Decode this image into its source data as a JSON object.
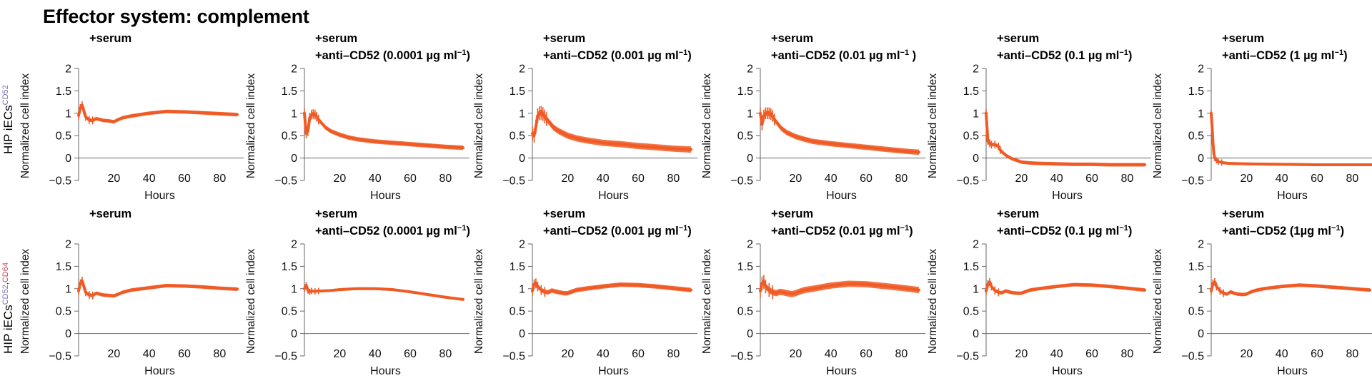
{
  "figure_title": "Effector system: complement",
  "row_labels": [
    {
      "text": "HIP iECs",
      "superscript": "CD52",
      "superscript_parts": [
        "CD52"
      ],
      "colors": [
        "#7b73b8"
      ]
    },
    {
      "text": "HIP iECs",
      "superscript": "CD52,CD64",
      "superscript_parts": [
        "CD52",
        "CD64"
      ],
      "colors": [
        "#7b73b8",
        "#d6435a"
      ]
    }
  ],
  "colors": {
    "series": "#f05a24",
    "axis": "#666666"
  },
  "chart_data": [
    {
      "type": "line",
      "row": 0,
      "col": 0,
      "title_line1": "+serum",
      "title_line2": "",
      "title_line2_suffix": "",
      "xlabel": "Hours",
      "ylabel": "Normalized cell index",
      "xlim": [
        0,
        92
      ],
      "ylim": [
        -0.5,
        2
      ],
      "xticks": [
        20,
        40,
        60,
        80
      ],
      "yticks": [
        "2",
        "1.5",
        "1",
        "0.5",
        "0",
        "−0.5"
      ],
      "series": [
        {
          "name": "Normalized cell index",
          "x": [
            0,
            1,
            2,
            3,
            4,
            6,
            8,
            10,
            12,
            14,
            17,
            20,
            22,
            25,
            30,
            40,
            50,
            60,
            70,
            80,
            90
          ],
          "y": [
            0.95,
            1.12,
            1.18,
            1.05,
            0.92,
            0.85,
            0.84,
            0.88,
            0.86,
            0.84,
            0.83,
            0.81,
            0.85,
            0.9,
            0.94,
            1.0,
            1.04,
            1.03,
            1.01,
            0.99,
            0.97
          ],
          "error": 0.04
        }
      ]
    },
    {
      "type": "line",
      "row": 0,
      "col": 1,
      "title_line1": "+serum",
      "title_line2": "+anti–CD52 (0.0001 µg ml",
      "title_line2_suffix": ")",
      "xlabel": "Hours",
      "ylabel": "Normalized cell index",
      "xlim": [
        0,
        92
      ],
      "ylim": [
        -0.5,
        2
      ],
      "xticks": [
        20,
        40,
        60,
        80
      ],
      "yticks": [
        "2",
        "1.5",
        "1",
        "0.5",
        "0",
        "−0.5"
      ],
      "series": [
        {
          "name": "Normalized cell index",
          "x": [
            0,
            1,
            2,
            3,
            4,
            5,
            6,
            7,
            8,
            10,
            12,
            15,
            20,
            25,
            30,
            40,
            50,
            60,
            70,
            80,
            90
          ],
          "y": [
            1.0,
            0.55,
            0.6,
            0.9,
            0.97,
            0.98,
            0.97,
            0.92,
            0.86,
            0.77,
            0.68,
            0.6,
            0.52,
            0.46,
            0.42,
            0.37,
            0.34,
            0.31,
            0.28,
            0.25,
            0.23
          ],
          "error": 0.05
        }
      ]
    },
    {
      "type": "line",
      "row": 0,
      "col": 2,
      "title_line1": "+serum",
      "title_line2": "+anti–CD52 (0.001 µg ml",
      "title_line2_suffix": ")",
      "xlabel": "Hours",
      "ylabel": "Normalized cell index",
      "xlim": [
        0,
        92
      ],
      "ylim": [
        -0.5,
        2
      ],
      "xticks": [
        20,
        40,
        60,
        80
      ],
      "yticks": [
        "2",
        "1.5",
        "1",
        "0.5",
        "0",
        "−0.5"
      ],
      "series": [
        {
          "name": "Normalized cell index",
          "x": [
            0,
            1,
            2,
            3,
            4,
            5,
            6,
            7,
            8,
            10,
            12,
            15,
            20,
            25,
            30,
            40,
            50,
            60,
            70,
            80,
            90
          ],
          "y": [
            0.55,
            0.5,
            0.7,
            0.95,
            1.0,
            1.01,
            0.98,
            0.93,
            0.87,
            0.78,
            0.68,
            0.6,
            0.5,
            0.44,
            0.4,
            0.34,
            0.31,
            0.27,
            0.24,
            0.21,
            0.19
          ],
          "error": 0.07
        }
      ]
    },
    {
      "type": "line",
      "row": 0,
      "col": 3,
      "title_line1": "+serum",
      "title_line2": "+anti–CD52 (0.01 µg ml",
      "title_line2_suffix": " )",
      "xlabel": "Hours",
      "ylabel": "Normalized cell index",
      "xlim": [
        0,
        92
      ],
      "ylim": [
        -0.5,
        2
      ],
      "xticks": [
        20,
        40,
        60,
        80
      ],
      "yticks": [
        "2",
        "1.5",
        "1",
        "0.5",
        "0",
        "−0.5"
      ],
      "series": [
        {
          "name": "Normalized cell index",
          "x": [
            0,
            1,
            2,
            3,
            4,
            5,
            6,
            7,
            8,
            10,
            12,
            15,
            20,
            25,
            30,
            40,
            50,
            60,
            70,
            80,
            90
          ],
          "y": [
            1.0,
            0.75,
            0.95,
            1.0,
            1.0,
            1.0,
            0.98,
            0.94,
            0.86,
            0.76,
            0.66,
            0.57,
            0.48,
            0.42,
            0.37,
            0.32,
            0.28,
            0.24,
            0.2,
            0.16,
            0.13
          ],
          "error": 0.06
        }
      ]
    },
    {
      "type": "line",
      "row": 0,
      "col": 4,
      "title_line1": "+serum",
      "title_line2": "+anti–CD52 (0.1 µg ml",
      "title_line2_suffix": ")",
      "xlabel": "Hours",
      "ylabel": "Normalized cell index",
      "xlim": [
        0,
        92
      ],
      "ylim": [
        -0.5,
        2
      ],
      "xticks": [
        20,
        40,
        60,
        80
      ],
      "yticks": [
        "2",
        "1.5",
        "1",
        "0.5",
        "0",
        "−0.5"
      ],
      "series": [
        {
          "name": "Normalized cell index",
          "x": [
            0,
            1,
            2,
            3,
            5,
            7,
            8,
            10,
            12,
            15,
            18,
            20,
            25,
            30,
            40,
            50,
            60,
            70,
            80,
            90
          ],
          "y": [
            1.0,
            0.38,
            0.33,
            0.3,
            0.3,
            0.26,
            0.18,
            0.1,
            0.04,
            -0.02,
            -0.06,
            -0.09,
            -0.11,
            -0.12,
            -0.13,
            -0.14,
            -0.14,
            -0.15,
            -0.15,
            -0.15
          ],
          "error": 0.04
        }
      ]
    },
    {
      "type": "line",
      "row": 0,
      "col": 5,
      "title_line1": "+serum",
      "title_line2": "+anti–CD52 (1 µg ml",
      "title_line2_suffix": ")",
      "xlabel": "Hours",
      "ylabel": "Normalized cell index",
      "xlim": [
        0,
        92
      ],
      "ylim": [
        -0.5,
        2
      ],
      "xticks": [
        20,
        40,
        60,
        80
      ],
      "yticks": [
        "2",
        "1.5",
        "1",
        "0.5",
        "0",
        "−0.5"
      ],
      "series": [
        {
          "name": "Normalized cell index",
          "x": [
            0,
            0.5,
            1,
            1.5,
            2,
            3,
            4,
            6,
            10,
            20,
            40,
            60,
            80,
            92
          ],
          "y": [
            1.0,
            0.7,
            0.35,
            0.1,
            0.0,
            -0.05,
            -0.08,
            -0.1,
            -0.12,
            -0.13,
            -0.14,
            -0.15,
            -0.15,
            -0.15
          ],
          "error": 0.03
        }
      ]
    },
    {
      "type": "line",
      "row": 1,
      "col": 0,
      "title_line1": "+serum",
      "title_line2": "",
      "title_line2_suffix": "",
      "xlabel": "Hours",
      "ylabel": "Normalized cell index",
      "xlim": [
        0,
        92
      ],
      "ylim": [
        -0.5,
        2
      ],
      "xticks": [
        20,
        40,
        60,
        80
      ],
      "yticks": [
        "2",
        "1.5",
        "1",
        "0.5",
        "0",
        "−0.5"
      ],
      "series": [
        {
          "name": "Normalized cell index",
          "x": [
            0,
            1,
            2,
            3,
            4,
            6,
            8,
            10,
            12,
            14,
            17,
            20,
            22,
            25,
            30,
            40,
            50,
            60,
            70,
            80,
            90
          ],
          "y": [
            0.95,
            1.12,
            1.18,
            1.05,
            0.92,
            0.86,
            0.85,
            0.9,
            0.88,
            0.86,
            0.85,
            0.84,
            0.87,
            0.92,
            0.97,
            1.02,
            1.07,
            1.06,
            1.04,
            1.01,
            0.99
          ],
          "error": 0.04
        }
      ]
    },
    {
      "type": "line",
      "row": 1,
      "col": 1,
      "title_line1": "+serum",
      "title_line2": "+anti–CD52 (0.0001 µg ml",
      "title_line2_suffix": ")",
      "xlabel": "Hours",
      "ylabel": "Normalized cell index",
      "xlim": [
        0,
        92
      ],
      "ylim": [
        -0.5,
        2
      ],
      "xticks": [
        20,
        40,
        60,
        80
      ],
      "yticks": [
        "2",
        "1.5",
        "1",
        "0.5",
        "0",
        "−0.5"
      ],
      "series": [
        {
          "name": "Normalized cell index",
          "x": [
            0,
            1,
            2,
            3,
            4,
            6,
            8,
            10,
            15,
            20,
            30,
            40,
            50,
            60,
            70,
            80,
            90
          ],
          "y": [
            1.0,
            1.08,
            0.96,
            0.93,
            0.95,
            0.94,
            0.95,
            0.95,
            0.96,
            0.98,
            1.0,
            1.0,
            0.98,
            0.93,
            0.87,
            0.81,
            0.76
          ],
          "error": 0.03
        }
      ]
    },
    {
      "type": "line",
      "row": 1,
      "col": 2,
      "title_line1": "+serum",
      "title_line2": "+anti–CD52 (0.001 µg ml",
      "title_line2_suffix": ")",
      "xlabel": "Hours",
      "ylabel": "Normalized cell index",
      "xlim": [
        0,
        92
      ],
      "ylim": [
        -0.5,
        2
      ],
      "xticks": [
        20,
        40,
        60,
        80
      ],
      "yticks": [
        "2",
        "1.5",
        "1",
        "0.5",
        "0",
        "−0.5"
      ],
      "series": [
        {
          "name": "Normalized cell index",
          "x": [
            0,
            1,
            2,
            3,
            5,
            7,
            9,
            11,
            13,
            15,
            18,
            20,
            22,
            25,
            30,
            40,
            50,
            60,
            70,
            80,
            90
          ],
          "y": [
            0.95,
            1.1,
            1.12,
            1.05,
            0.97,
            0.93,
            0.92,
            0.96,
            0.94,
            0.92,
            0.9,
            0.9,
            0.93,
            0.97,
            1.0,
            1.05,
            1.09,
            1.08,
            1.05,
            1.01,
            0.97
          ],
          "error": 0.05
        }
      ]
    },
    {
      "type": "line",
      "row": 1,
      "col": 3,
      "title_line1": "+serum",
      "title_line2": "+anti–CD52 (0.01 µg ml",
      "title_line2_suffix": ")",
      "xlabel": "Hours",
      "ylabel": "Normalized cell index",
      "xlim": [
        0,
        92
      ],
      "ylim": [
        -0.5,
        2
      ],
      "xticks": [
        20,
        40,
        60,
        80
      ],
      "yticks": [
        "2",
        "1.5",
        "1",
        "0.5",
        "0",
        "−0.5"
      ],
      "series": [
        {
          "name": "Normalized cell index",
          "x": [
            0,
            1,
            2,
            3,
            5,
            7,
            9,
            11,
            13,
            15,
            18,
            20,
            22,
            25,
            30,
            40,
            50,
            60,
            70,
            80,
            90
          ],
          "y": [
            0.95,
            1.12,
            1.15,
            1.05,
            0.97,
            0.92,
            0.9,
            0.93,
            0.92,
            0.9,
            0.88,
            0.9,
            0.93,
            0.97,
            1.0,
            1.07,
            1.11,
            1.1,
            1.06,
            1.02,
            0.97
          ],
          "error": 0.07
        }
      ]
    },
    {
      "type": "line",
      "row": 1,
      "col": 4,
      "title_line1": "+serum",
      "title_line2": "+anti–CD52 (0.1 µg ml",
      "title_line2_suffix": ")",
      "xlabel": "Hours",
      "ylabel": "Normalized cell index",
      "xlim": [
        0,
        92
      ],
      "ylim": [
        -0.5,
        2
      ],
      "xticks": [
        20,
        40,
        60,
        80
      ],
      "yticks": [
        "2",
        "1.5",
        "1",
        "0.5",
        "0",
        "−0.5"
      ],
      "series": [
        {
          "name": "Normalized cell index",
          "x": [
            0,
            1,
            2,
            3,
            5,
            7,
            9,
            11,
            13,
            15,
            18,
            20,
            22,
            25,
            30,
            40,
            50,
            60,
            70,
            80,
            90
          ],
          "y": [
            0.95,
            1.1,
            1.15,
            1.05,
            0.96,
            0.92,
            0.91,
            0.95,
            0.93,
            0.91,
            0.9,
            0.9,
            0.93,
            0.97,
            1.0,
            1.05,
            1.09,
            1.08,
            1.05,
            1.01,
            0.97
          ],
          "error": 0.04
        }
      ]
    },
    {
      "type": "line",
      "row": 1,
      "col": 5,
      "title_line1": "+serum",
      "title_line2": "+anti–CD52 (1µg ml",
      "title_line2_suffix": ")",
      "xlabel": "Hours",
      "ylabel": "Normalized cell index",
      "xlim": [
        0,
        92
      ],
      "ylim": [
        -0.5,
        2
      ],
      "xticks": [
        20,
        40,
        60,
        80
      ],
      "yticks": [
        "2",
        "1.5",
        "1",
        "0.5",
        "0",
        "−0.5"
      ],
      "series": [
        {
          "name": "Normalized cell index",
          "x": [
            0,
            1,
            2,
            3,
            5,
            7,
            9,
            11,
            13,
            15,
            18,
            20,
            22,
            25,
            30,
            40,
            50,
            60,
            70,
            80,
            90
          ],
          "y": [
            0.95,
            1.12,
            1.15,
            1.05,
            0.95,
            0.9,
            0.88,
            0.93,
            0.9,
            0.88,
            0.87,
            0.88,
            0.92,
            0.96,
            1.0,
            1.05,
            1.08,
            1.06,
            1.03,
            1.0,
            0.97
          ],
          "error": 0.04
        }
      ]
    }
  ]
}
